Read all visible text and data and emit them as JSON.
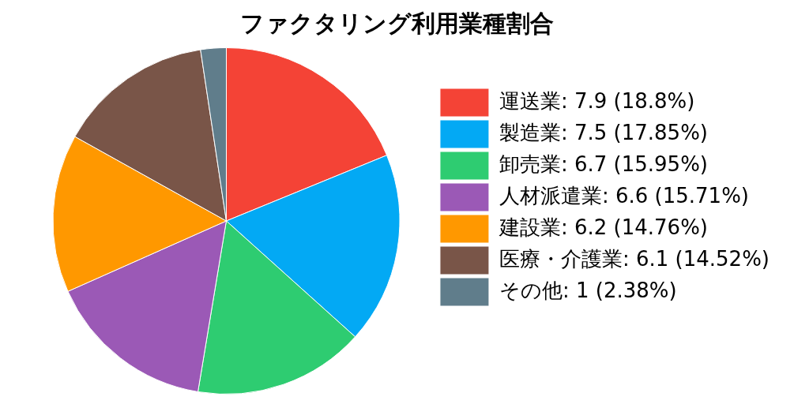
{
  "chart_data": {
    "type": "pie",
    "title": "ファクタリング利用業種割合",
    "categories": [
      "運送業: 7.9 (18.8%)",
      "製造業: 7.5 (17.85%)",
      "卸売業: 6.7 (15.95%)",
      "人材派遣業: 6.6 (15.71%)",
      "建設業: 6.2 (14.76%)",
      "医療・介護業: 6.1 (14.52%)",
      "その他: 1 (2.38%)"
    ],
    "values": [
      7.9,
      7.5,
      6.7,
      6.6,
      6.2,
      6.1,
      1
    ],
    "colors": [
      "#f44336",
      "#03a9f4",
      "#2ecc71",
      "#9b59b6",
      "#ff9800",
      "#795548",
      "#607d8b"
    ],
    "legend": "right"
  }
}
